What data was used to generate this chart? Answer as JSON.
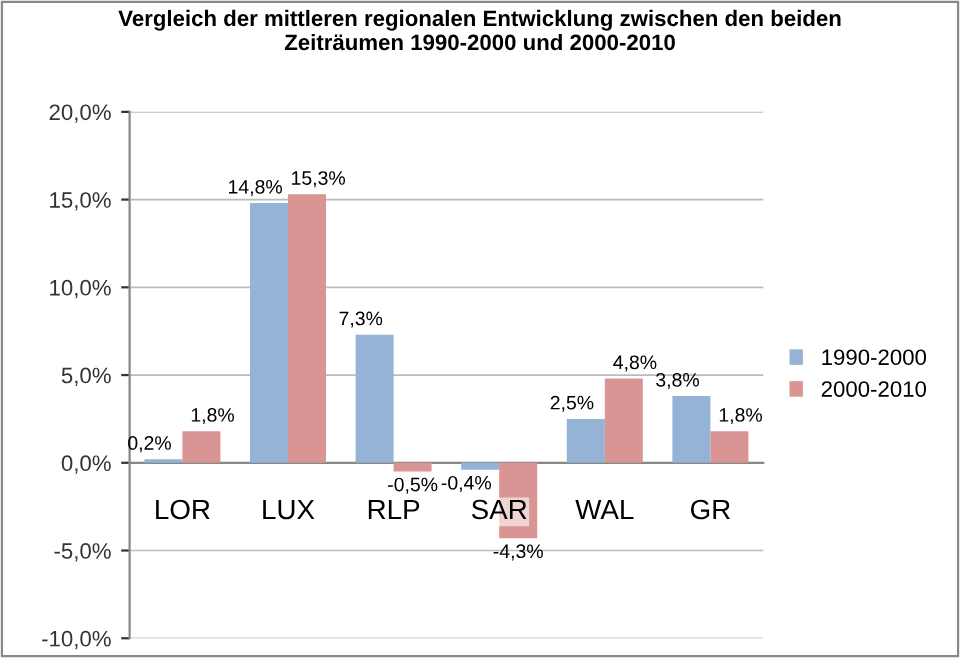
{
  "chart_data": {
    "type": "bar",
    "title": "Vergleich der mittleren regionalen Entwicklung zwischen den beiden\nZeiträumen 1990-2000 und 2000-2010",
    "categories": [
      "LOR",
      "LUX",
      "RLP",
      "SAR",
      "WAL",
      "GR"
    ],
    "series": [
      {
        "name": "1990-2000",
        "color": "#95b3d7",
        "values": [
          0.2,
          14.8,
          7.3,
          -0.4,
          2.5,
          3.8
        ],
        "value_labels": [
          "0,2%",
          "14,8%",
          "7,3%",
          "-0,4%",
          "2,5%",
          "3,8%"
        ]
      },
      {
        "name": "2000-2010",
        "color": "#d99594",
        "values": [
          1.8,
          15.3,
          -0.5,
          -4.3,
          4.8,
          1.8
        ],
        "value_labels": [
          "1,8%",
          "15,3%",
          "-0,5%",
          "-4,3%",
          "4,8%",
          "1,8%"
        ]
      }
    ],
    "ylim": [
      -10,
      20
    ],
    "yticks": [
      {
        "value": -10,
        "label": "-10,0%"
      },
      {
        "value": -5,
        "label": "-5,0%"
      },
      {
        "value": 0,
        "label": "0,0%"
      },
      {
        "value": 5,
        "label": "5,0%"
      },
      {
        "value": 10,
        "label": "10,0%"
      },
      {
        "value": 15,
        "label": "15,0%"
      },
      {
        "value": 20,
        "label": "20,0%"
      }
    ],
    "grid": "y",
    "legend": "right"
  }
}
